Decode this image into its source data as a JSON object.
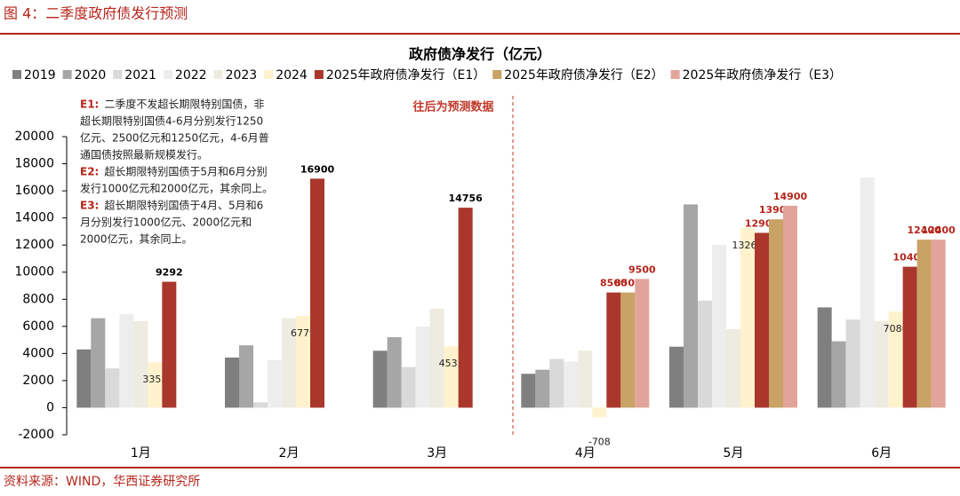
{
  "header": {
    "title": "图 4：二季度政府债发行预测",
    "source": "资料来源：WIND，华西证券研究所"
  },
  "chart_data": {
    "type": "bar",
    "title": "政府债净发行（亿元）",
    "categories": [
      "1月",
      "2月",
      "3月",
      "4月",
      "5月",
      "6月"
    ],
    "series": [
      {
        "name": "2019",
        "color": "#7f7f7f",
        "values": [
          4300,
          3700,
          4200,
          2500,
          4500,
          7400
        ]
      },
      {
        "name": "2020",
        "color": "#a6a6a6",
        "values": [
          6600,
          4600,
          5200,
          2800,
          15000,
          4900
        ]
      },
      {
        "name": "2021",
        "color": "#d9d9d9",
        "values": [
          2900,
          400,
          3000,
          3600,
          7900,
          6500
        ]
      },
      {
        "name": "2022",
        "color": "#ededed",
        "values": [
          6900,
          3500,
          6000,
          3400,
          12000,
          17000
        ]
      },
      {
        "name": "2023",
        "color": "#eeebe0",
        "values": [
          6400,
          6600,
          7300,
          4200,
          5800,
          6400
        ]
      },
      {
        "name": "2024",
        "color": "#fff2cc",
        "show_labels": true,
        "values": [
          3353,
          6779,
          4533,
          -708,
          13262,
          7086
        ]
      },
      {
        "name": "2025年政府债净发行（E1）",
        "color": "#a9372b",
        "show_labels": true,
        "values": [
          9292,
          16900,
          14756,
          8500,
          12900,
          10400
        ]
      },
      {
        "name": "2025年政府债净发行（E2）",
        "color": "#c9a265",
        "show_labels": true,
        "values": [
          null,
          null,
          null,
          8500,
          13900,
          12400
        ]
      },
      {
        "name": "2025年政府债净发行（E3）",
        "color": "#e2a49a",
        "show_labels": true,
        "values": [
          null,
          null,
          null,
          9500,
          14900,
          12400
        ]
      }
    ],
    "ylim": [
      -2000,
      20000
    ],
    "yticks": [
      -2000,
      0,
      2000,
      4000,
      6000,
      8000,
      10000,
      12000,
      14000,
      16000,
      18000,
      20000
    ],
    "legend": "top",
    "annotations": {
      "forecast": "往后为预测数据",
      "notes": [
        {
          "label": "E1:",
          "lines": [
            "二季度不发超长期限特别国债，非",
            "超长期限特别国债4-6月分别发行1250",
            "亿元、2500亿元和1250亿元，4-6月普",
            "通国债按照最新规模发行。"
          ]
        },
        {
          "label": "E2:",
          "lines": [
            "超长期限特别国债于5月和6月分别",
            "发行1000亿元和2000亿元，其余同上。"
          ]
        },
        {
          "label": "E3:",
          "lines": [
            "超长期限特别国债于4月、5月和6",
            "月分别发行1000亿元、2000亿元和",
            "2000亿元，其余同上。"
          ]
        }
      ]
    }
  }
}
